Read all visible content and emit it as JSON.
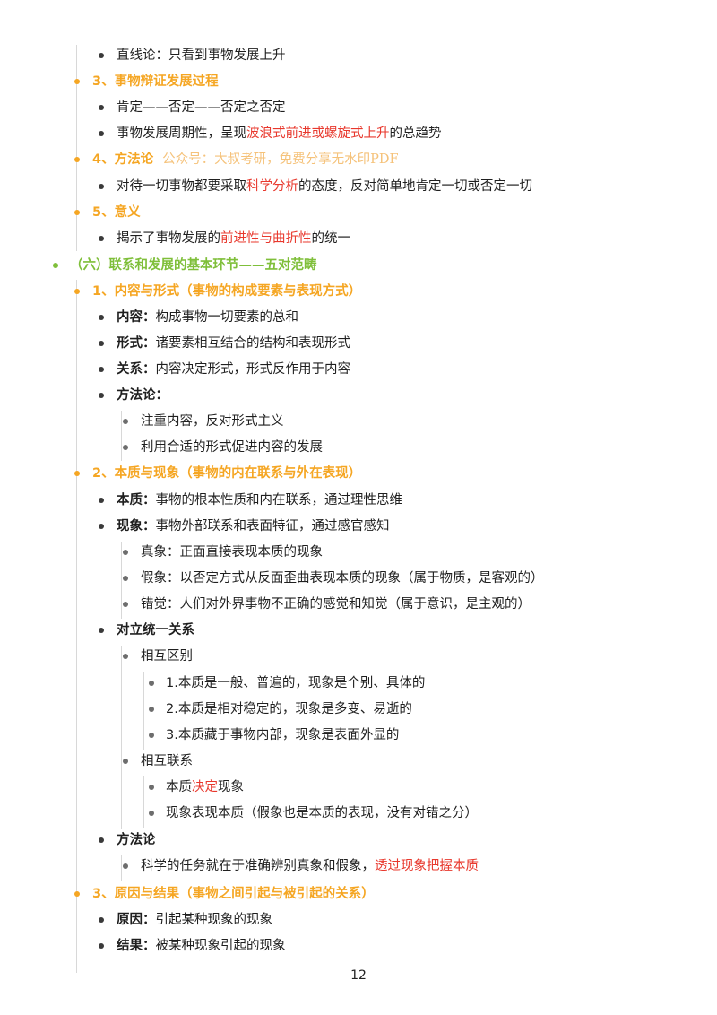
{
  "lines": {
    "l1": "直线论：只看到事物发展上升",
    "l2": "3、事物辩证发展过程",
    "l3": "肯定——否定——否定之否定",
    "l4a": "事物发展周期性，呈现",
    "l4b": "波浪式前进或螺旋式上升",
    "l4c": "的总趋势",
    "l5": "4、方法论",
    "watermark": "公众号：大叔考研，免费分享无水印PDF",
    "l6a": "对待一切事物都要采取",
    "l6b": "科学分析",
    "l6c": "的态度，反对简单地肯定一切或否定一切",
    "l7": "5、意义",
    "l8a": "揭示了事物发展的",
    "l8b": "前进性与曲折性",
    "l8c": "的统一",
    "l9": "（六）联系和发展的基本环节——五对范畴",
    "l10": "1、内容与形式（事物的构成要素与表现方式）",
    "l11a": "内容：",
    "l11b": "构成事物一切要素的总和",
    "l12a": "形式：",
    "l12b": "诸要素相互结合的结构和表现形式",
    "l13a": "关系：",
    "l13b": "内容决定形式，形式反作用于内容",
    "l14": "方法论：",
    "l15": "注重内容，反对形式主义",
    "l16": "利用合适的形式促进内容的发展",
    "l17": "2、本质与现象（事物的内在联系与外在表现）",
    "l18a": "本质：",
    "l18b": "事物的根本性质和内在联系，通过理性思维",
    "l19a": "现象：",
    "l19b": "事物外部联系和表面特征，通过感官感知",
    "l20": "真象：正面直接表现本质的现象",
    "l21": "假象：以否定方式从反面歪曲表现本质的现象（属于物质，是客观的）",
    "l22": "错觉：人们对外界事物不正确的感觉和知觉（属于意识，是主观的）",
    "l23": "对立统一关系",
    "l24": "相互区别",
    "l25": "1.本质是一般、普遍的，现象是个别、具体的",
    "l26": "2.本质是相对稳定的，现象是多变、易逝的",
    "l27": "3.本质藏于事物内部，现象是表面外显的",
    "l28": "相互联系",
    "l29a": "本质",
    "l29b": "决定",
    "l29c": "现象",
    "l30": "现象表现本质（假象也是本质的表现，没有对错之分）",
    "l31": "方法论",
    "l32a": "科学的任务就在于准确辨别真象和假象，",
    "l32b": "透过现象把握本质",
    "l33": "3、原因与结果（事物之间引起与被引起的关系）",
    "l34a": "原因：",
    "l34b": "引起某种现象的现象",
    "l35a": "结果：",
    "l35b": "被某种现象引起的现象"
  },
  "page_number": "12",
  "colors": {
    "orange": "#f5a623",
    "green": "#7fbf3a",
    "red": "#e8382d"
  }
}
